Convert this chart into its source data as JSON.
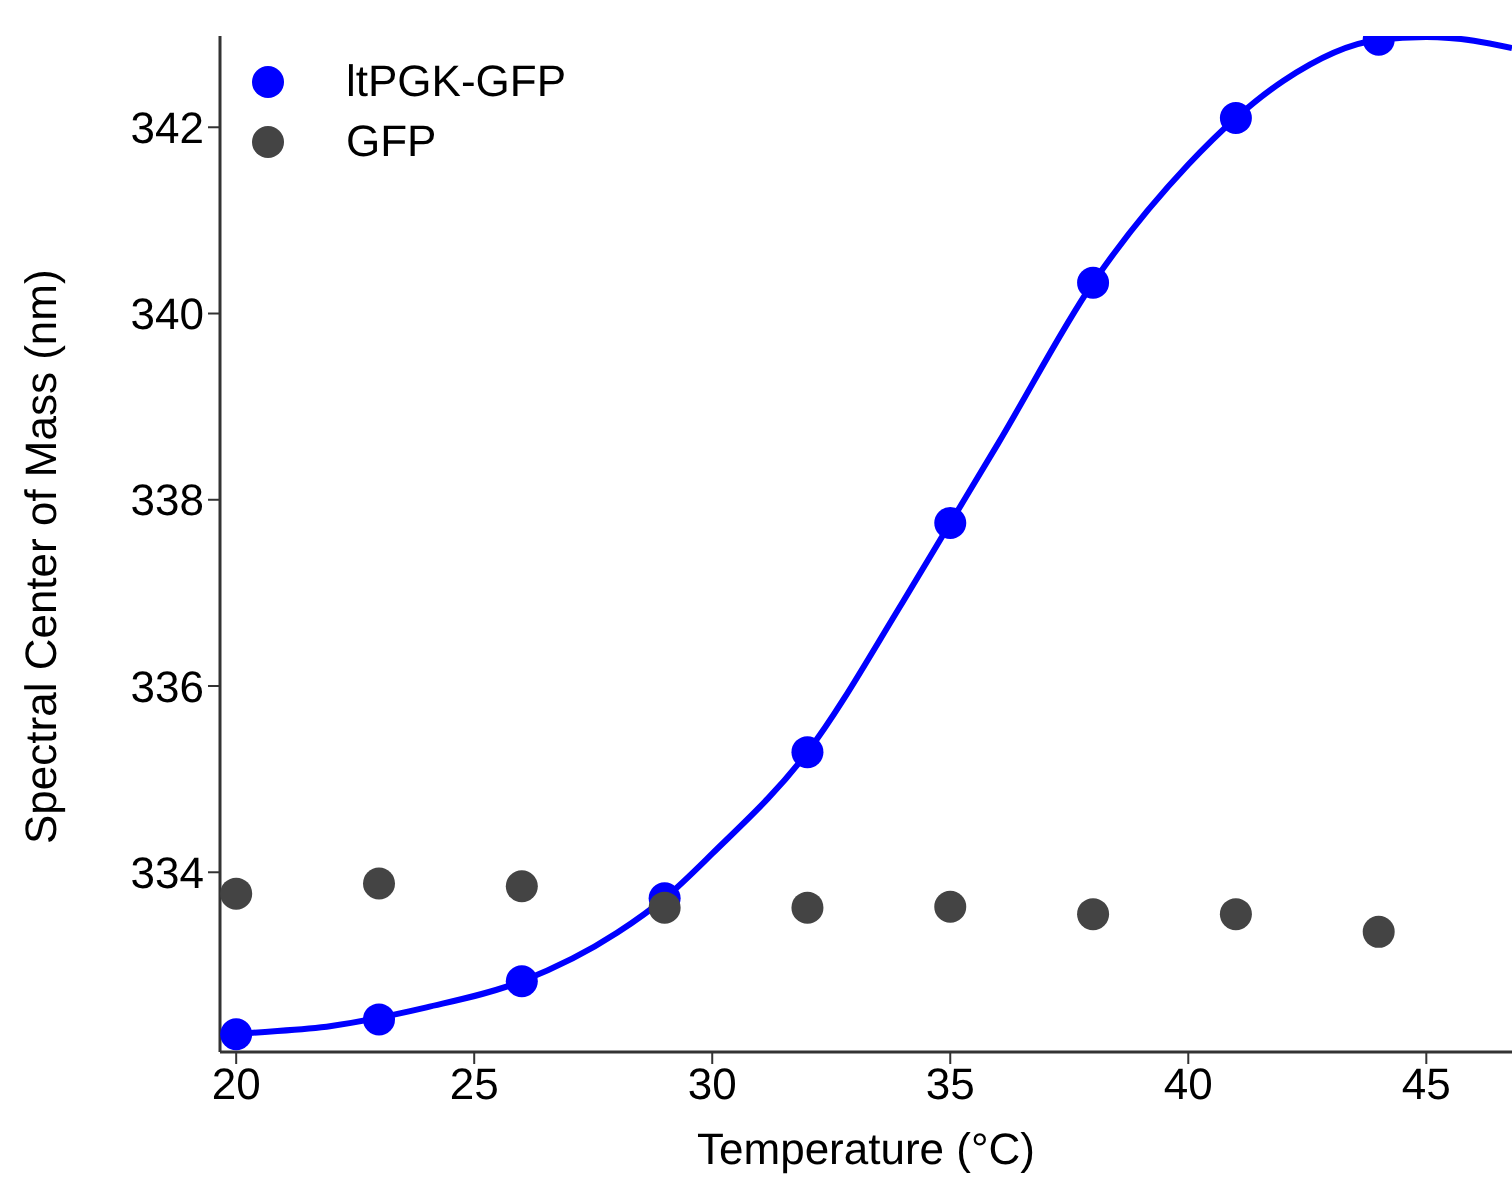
{
  "chart_data": {
    "type": "scatter",
    "xlabel": "Temperature (°C)",
    "ylabel": "Spectral Center of Mass (nm)",
    "xlim": [
      19.66,
      46.8
    ],
    "xticks": [
      20,
      25,
      30,
      35,
      40,
      45
    ],
    "ylim": [
      332.07,
      342.98
    ],
    "yticks": [
      334,
      336,
      338,
      340,
      342
    ],
    "grid": false,
    "legend": "top left",
    "marker": "circle",
    "series": [
      {
        "name": "ltPGK-GFP",
        "color": "#0000ff",
        "x": [
          20,
          23,
          26,
          29,
          32,
          35,
          38,
          41,
          44
        ],
        "values": [
          332.26,
          332.42,
          332.83,
          333.72,
          335.29,
          337.75,
          340.33,
          342.1,
          342.94
        ]
      },
      {
        "name": "GFP",
        "color": "#444444",
        "x": [
          20,
          23,
          26,
          29,
          32,
          35,
          38,
          41,
          44
        ],
        "values": [
          333.77,
          333.88,
          333.85,
          333.62,
          333.62,
          333.63,
          333.55,
          333.55,
          333.36
        ]
      },
      {
        "type": "line",
        "marker": "none",
        "color": "#0000ff",
        "x": [
          19.66,
          20,
          22,
          24,
          26,
          28,
          29,
          30,
          32,
          34,
          35,
          36,
          38,
          40,
          41,
          42,
          44,
          45,
          46,
          46.8
        ],
        "values": [
          332.24,
          332.26,
          332.35,
          332.55,
          332.83,
          333.35,
          333.72,
          334.2,
          335.29,
          336.9,
          337.75,
          338.6,
          340.33,
          341.6,
          342.1,
          342.5,
          342.94,
          342.97,
          342.93,
          342.85
        ]
      }
    ]
  }
}
